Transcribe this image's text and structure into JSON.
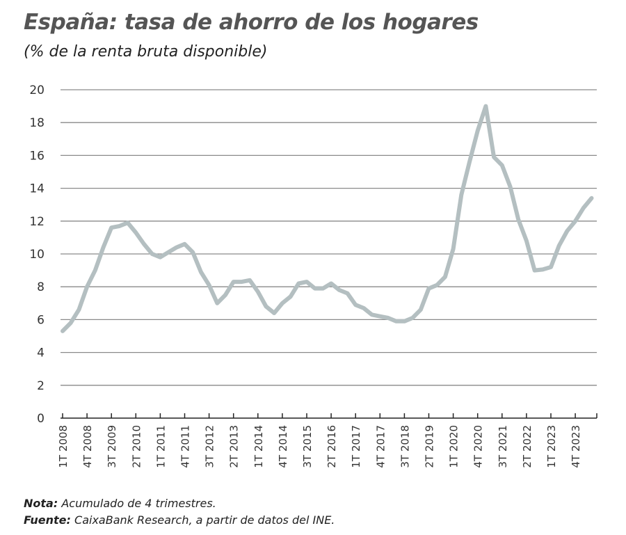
{
  "chart_data": {
    "type": "line",
    "title": "España: tasa de ahorro de los hogares",
    "subtitle": "(% de la renta bruta disponible)",
    "ylim": [
      0,
      20
    ],
    "yticks": [
      0,
      2,
      4,
      6,
      8,
      10,
      12,
      14,
      16,
      18,
      20
    ],
    "grid": true,
    "xtick_labels": [
      "1T 2008",
      "4T 2008",
      "3T 2009",
      "2T 2010",
      "1T 2011",
      "4T 2011",
      "3T 2012",
      "2T 2013",
      "1T 2014",
      "4T 2014",
      "3T 2015",
      "2T 2016",
      "1T 2017",
      "4T 2017",
      "3T 2018",
      "2T 2019",
      "1T 2020",
      "4T 2020",
      "3T 2021",
      "2T 2022",
      "1T 2023",
      "4T 2023"
    ],
    "x_start": "1T 2008",
    "frequency": "quarterly",
    "line_color": "#b4bfc1",
    "values": [
      5.3,
      5.8,
      6.6,
      8.0,
      9.0,
      10.4,
      11.6,
      11.7,
      11.9,
      11.3,
      10.6,
      10.0,
      9.8,
      10.1,
      10.4,
      10.6,
      10.1,
      8.9,
      8.1,
      7.0,
      7.5,
      8.3,
      8.3,
      8.4,
      7.7,
      6.8,
      6.4,
      7.0,
      7.4,
      8.2,
      8.3,
      7.9,
      7.9,
      8.2,
      7.8,
      7.6,
      6.9,
      6.7,
      6.3,
      6.2,
      6.1,
      5.9,
      5.9,
      6.1,
      6.6,
      7.9,
      8.1,
      8.6,
      10.3,
      13.6,
      15.6,
      17.5,
      19.0,
      15.9,
      15.4,
      14.1,
      12.1,
      10.8,
      9.0,
      9.05,
      9.2,
      10.5,
      11.4,
      12.0,
      12.8,
      13.4
    ]
  },
  "notes": {
    "nota_label": "Nota:",
    "nota_text": " Acumulado de 4 trimestres.",
    "fuente_label": "Fuente:",
    "fuente_text": " CaixaBank Research, a partir de datos del INE."
  }
}
